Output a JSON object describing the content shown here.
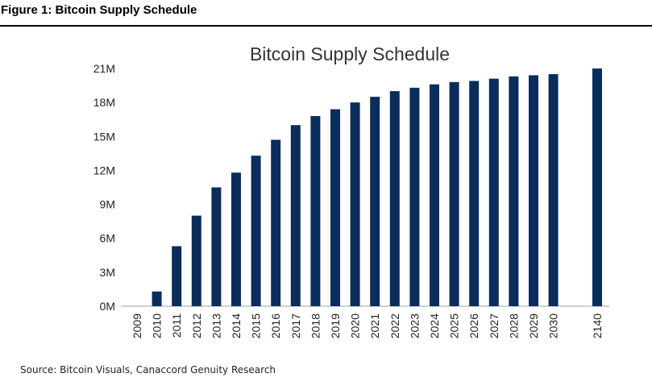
{
  "figure_title": "Figure 1: Bitcoin Supply Schedule",
  "source_text": "Source: Bitcoin Visuals, Canaccord Genuity Research",
  "chart_data": {
    "type": "bar",
    "title": "Bitcoin Supply Schedule",
    "xlabel": "",
    "ylabel": "",
    "ylim": [
      0,
      21
    ],
    "y_unit": "M",
    "y_ticks": [
      "0M",
      "3M",
      "6M",
      "9M",
      "12M",
      "15M",
      "18M",
      "21M"
    ],
    "bar_color": "#0b2d5b",
    "grid": false,
    "categories": [
      "2009",
      "2010",
      "2011",
      "2012",
      "2013",
      "2014",
      "2015",
      "2016",
      "2017",
      "2018",
      "2019",
      "2020",
      "2021",
      "2022",
      "2023",
      "2024",
      "2025",
      "2026",
      "2027",
      "2028",
      "2029",
      "2030",
      "2140"
    ],
    "values": [
      0,
      1.3,
      5.3,
      8.0,
      10.5,
      11.8,
      13.3,
      14.7,
      16.0,
      16.8,
      17.4,
      18.0,
      18.5,
      19.0,
      19.3,
      19.6,
      19.8,
      19.9,
      20.1,
      20.3,
      20.4,
      20.5,
      21.0
    ]
  }
}
